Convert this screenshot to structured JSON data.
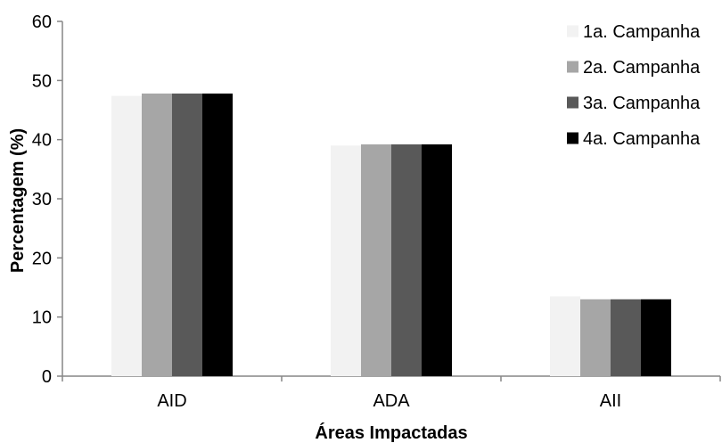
{
  "chart_data": {
    "type": "bar",
    "title": "",
    "xlabel": "Áreas Impactadas",
    "ylabel": "Percentagem (%)",
    "categories": [
      "AID",
      "ADA",
      "AII"
    ],
    "series": [
      {
        "name": "1a. Campanha",
        "color": "#f2f2f2",
        "values": [
          47.4,
          39.0,
          13.5
        ]
      },
      {
        "name": "2a. Campanha",
        "color": "#a6a6a6",
        "values": [
          47.8,
          39.2,
          13.0
        ]
      },
      {
        "name": "3a. Campanha",
        "color": "#595959",
        "values": [
          47.8,
          39.2,
          13.0
        ]
      },
      {
        "name": "4a. Campanha",
        "color": "#000000",
        "values": [
          47.8,
          39.2,
          13.0
        ]
      }
    ],
    "ylim": [
      0,
      60
    ],
    "yticks": [
      0,
      10,
      20,
      30,
      40,
      50,
      60
    ],
    "grid": false,
    "legend": "top-right"
  }
}
